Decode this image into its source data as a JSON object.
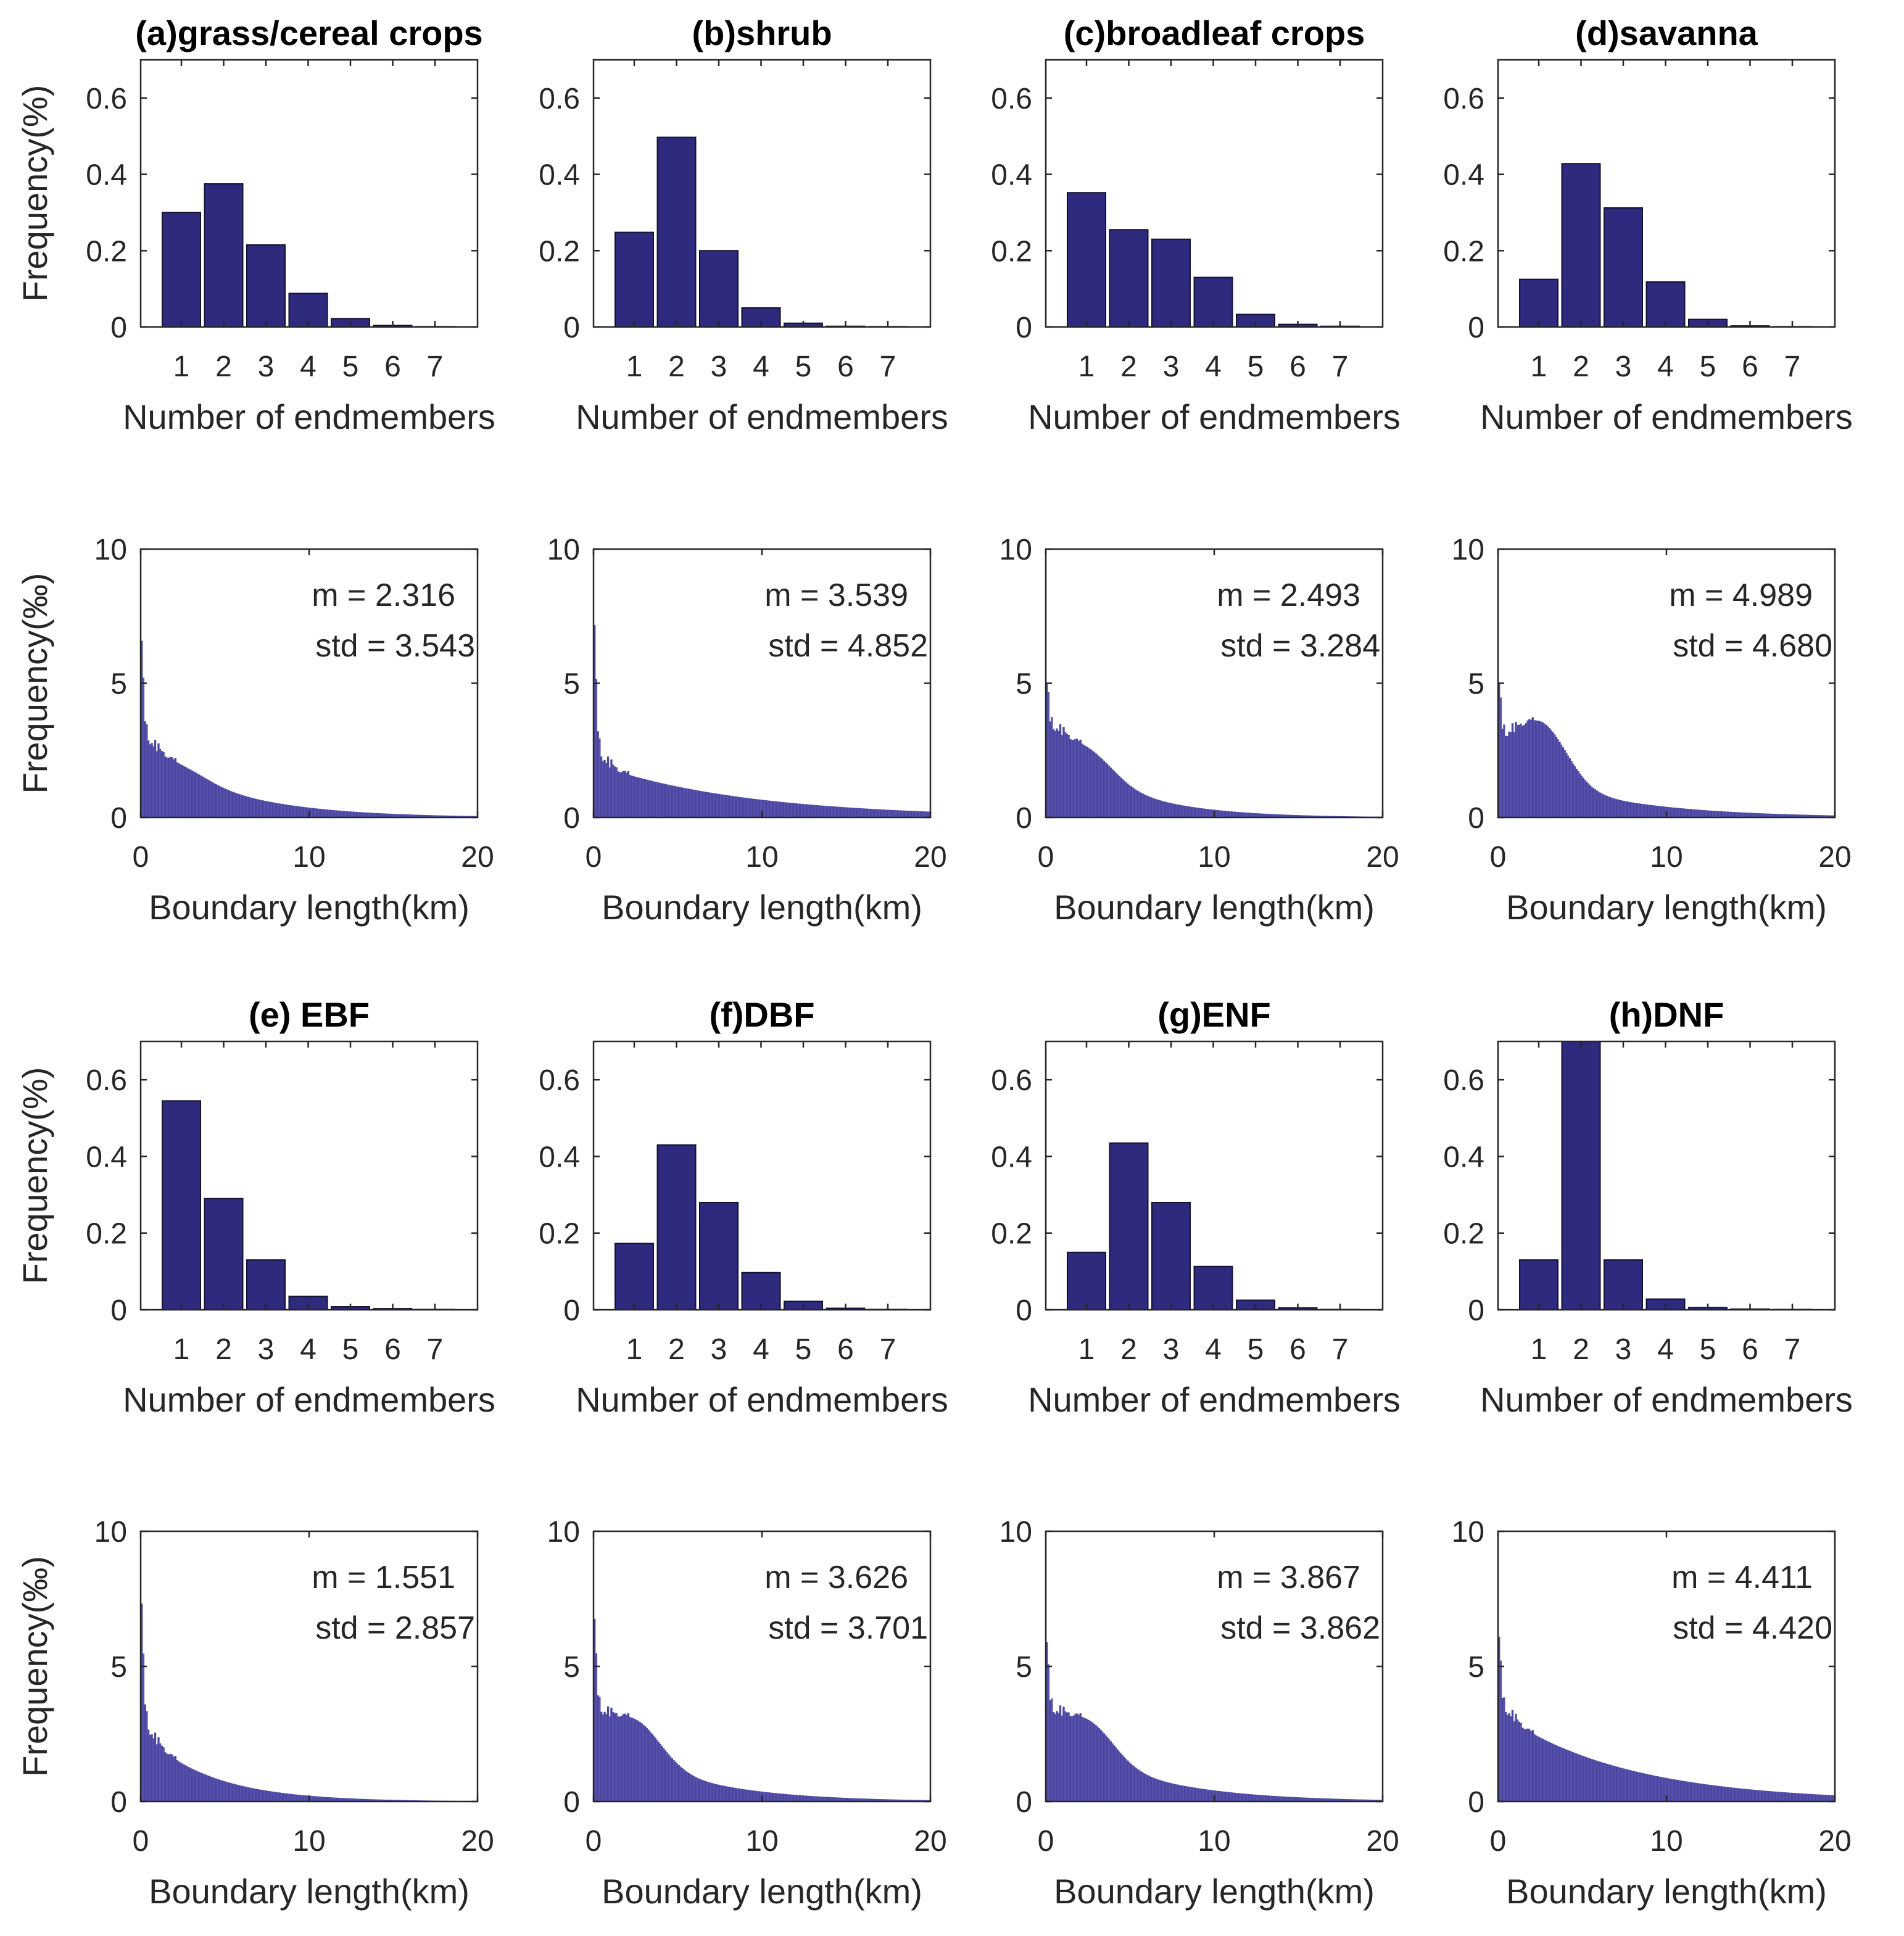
{
  "figure": {
    "bar_color": "#2e2a7e",
    "hist_color": "#4a46a0",
    "frame_color": "#262626",
    "endmember_ylabel": "Frequency(%)",
    "boundary_ylabel": "Frequency(‰)",
    "endmember_xlabel": "Number of endmembers",
    "boundary_xlabel": "Boundary length(km)"
  },
  "chart_data": [
    {
      "id": "a",
      "type": "bar",
      "title": "(a)grass/cereal crops",
      "xlabel": "Number of endmembers",
      "ylabel": "Frequency(%)",
      "categories": [
        "1",
        "2",
        "3",
        "4",
        "5",
        "6",
        "7"
      ],
      "values": [
        0.3,
        0.375,
        0.215,
        0.088,
        0.022,
        0.004,
        0.001
      ],
      "ylim": [
        0,
        0.7
      ],
      "yticks": [
        "0",
        "0.2",
        "0.4",
        "0.6"
      ]
    },
    {
      "id": "b",
      "type": "bar",
      "title": "(b)shrub",
      "xlabel": "Number of endmembers",
      "ylabel": "",
      "categories": [
        "1",
        "2",
        "3",
        "4",
        "5",
        "6",
        "7"
      ],
      "values": [
        0.248,
        0.497,
        0.2,
        0.05,
        0.01,
        0.002,
        0.001
      ],
      "ylim": [
        0,
        0.7
      ],
      "yticks": [
        "0",
        "0.2",
        "0.4",
        "0.6"
      ]
    },
    {
      "id": "c",
      "type": "bar",
      "title": "(c)broadleaf crops",
      "xlabel": "Number of endmembers",
      "ylabel": "",
      "categories": [
        "1",
        "2",
        "3",
        "4",
        "5",
        "6",
        "7"
      ],
      "values": [
        0.352,
        0.255,
        0.23,
        0.13,
        0.033,
        0.007,
        0.002
      ],
      "ylim": [
        0,
        0.7
      ],
      "yticks": [
        "0",
        "0.2",
        "0.4",
        "0.6"
      ]
    },
    {
      "id": "d",
      "type": "bar",
      "title": "(d)savanna",
      "xlabel": "Number of endmembers",
      "ylabel": "",
      "categories": [
        "1",
        "2",
        "3",
        "4",
        "5",
        "6",
        "7"
      ],
      "values": [
        0.125,
        0.428,
        0.312,
        0.118,
        0.02,
        0.003,
        0.001
      ],
      "ylim": [
        0,
        0.7
      ],
      "yticks": [
        "0",
        "0.2",
        "0.4",
        "0.6"
      ]
    },
    {
      "id": "a-len",
      "type": "histogram",
      "title": "",
      "xlabel": "Boundary length(km)",
      "ylabel": "Frequency(‰)",
      "xlim": [
        0,
        20
      ],
      "ylim": [
        0,
        10
      ],
      "xticks": [
        "0",
        "10",
        "20"
      ],
      "yticks": [
        "0",
        "5",
        "10"
      ],
      "dist": {
        "base": 2.7,
        "decay": 5.0,
        "hump": 0.3,
        "peak": 7.0
      },
      "stats": {
        "m": "m = 2.316",
        "std": "std = 3.543"
      }
    },
    {
      "id": "b-len",
      "type": "histogram",
      "title": "",
      "xlabel": "Boundary length(km)",
      "ylabel": "",
      "xlim": [
        0,
        20
      ],
      "ylim": [
        0,
        10
      ],
      "xticks": [
        "0",
        "10",
        "20"
      ],
      "yticks": [
        "0",
        "5",
        "10"
      ],
      "dist": {
        "base": 2.0,
        "decay": 9.0,
        "hump": 0.0,
        "peak": 8.2
      },
      "stats": {
        "m": "m = 3.539",
        "std": "std = 4.852"
      }
    },
    {
      "id": "c-len",
      "type": "histogram",
      "title": "",
      "xlabel": "Boundary length(km)",
      "ylabel": "",
      "xlim": [
        0,
        20
      ],
      "ylim": [
        0,
        10
      ],
      "xticks": [
        "0",
        "10",
        "20"
      ],
      "yticks": [
        "0",
        "5",
        "10"
      ],
      "dist": {
        "base": 3.1,
        "decay": 4.2,
        "hump": 0.9,
        "peak": 4.4
      },
      "stats": {
        "m": "m = 2.493",
        "std": "std = 3.284"
      }
    },
    {
      "id": "d-len",
      "type": "histogram",
      "title": "",
      "xlabel": "Boundary length(km)",
      "ylabel": "",
      "xlim": [
        0,
        20
      ],
      "ylim": [
        0,
        10
      ],
      "xticks": [
        "0",
        "10",
        "20"
      ],
      "yticks": [
        "0",
        "5",
        "10"
      ],
      "dist": {
        "base": 2.1,
        "decay": 6.0,
        "hump": 2.2,
        "peak": 4.3
      },
      "stats": {
        "m": "m = 4.989",
        "std": "std = 4.680"
      }
    },
    {
      "id": "e",
      "type": "bar",
      "title": "(e) EBF",
      "xlabel": "Number of endmembers",
      "ylabel": "Frequency(%)",
      "categories": [
        "1",
        "2",
        "3",
        "4",
        "5",
        "6",
        "7"
      ],
      "values": [
        0.545,
        0.29,
        0.13,
        0.035,
        0.008,
        0.003,
        0.001
      ],
      "ylim": [
        0,
        0.7
      ],
      "yticks": [
        "0",
        "0.2",
        "0.4",
        "0.6"
      ]
    },
    {
      "id": "f",
      "type": "bar",
      "title": "(f)DBF",
      "xlabel": "Number of endmembers",
      "ylabel": "",
      "categories": [
        "1",
        "2",
        "3",
        "4",
        "5",
        "6",
        "7"
      ],
      "values": [
        0.173,
        0.43,
        0.28,
        0.097,
        0.022,
        0.004,
        0.001
      ],
      "ylim": [
        0,
        0.7
      ],
      "yticks": [
        "0",
        "0.2",
        "0.4",
        "0.6"
      ]
    },
    {
      "id": "g",
      "type": "bar",
      "title": "(g)ENF",
      "xlabel": "Number of endmembers",
      "ylabel": "",
      "categories": [
        "1",
        "2",
        "3",
        "4",
        "5",
        "6",
        "7"
      ],
      "values": [
        0.15,
        0.435,
        0.28,
        0.113,
        0.025,
        0.005,
        0.001
      ],
      "ylim": [
        0,
        0.7
      ],
      "yticks": [
        "0",
        "0.2",
        "0.4",
        "0.6"
      ]
    },
    {
      "id": "h",
      "type": "bar",
      "title": "(h)DNF",
      "xlabel": "Number of endmembers",
      "ylabel": "",
      "categories": [
        "1",
        "2",
        "3",
        "4",
        "5",
        "6",
        "7"
      ],
      "values": [
        0.13,
        0.7,
        0.13,
        0.028,
        0.006,
        0.002,
        0.001
      ],
      "ylim": [
        0,
        0.7
      ],
      "yticks": [
        "0",
        "0.2",
        "0.4",
        "0.6"
      ]
    },
    {
      "id": "e-len",
      "type": "histogram",
      "title": "",
      "xlabel": "Boundary length(km)",
      "ylabel": "Frequency(‰)",
      "xlim": [
        0,
        20
      ],
      "ylim": [
        0,
        10
      ],
      "xticks": [
        "0",
        "10",
        "20"
      ],
      "yticks": [
        "0",
        "5",
        "10"
      ],
      "dist": {
        "base": 2.6,
        "decay": 4.0,
        "hump": 0.0,
        "peak": 8.2
      },
      "stats": {
        "m": "m = 1.551",
        "std": "std = 2.857"
      }
    },
    {
      "id": "f-len",
      "type": "histogram",
      "title": "",
      "xlabel": "Boundary length(km)",
      "ylabel": "",
      "xlim": [
        0,
        20
      ],
      "ylim": [
        0,
        10
      ],
      "xticks": [
        "0",
        "10",
        "20"
      ],
      "yticks": [
        "0",
        "5",
        "10"
      ],
      "dist": {
        "base": 2.7,
        "decay": 5.0,
        "hump": 1.4,
        "peak": 6.8
      },
      "stats": {
        "m": "m = 3.626",
        "std": "std = 3.701"
      }
    },
    {
      "id": "g-len",
      "type": "histogram",
      "title": "",
      "xlabel": "Boundary length(km)",
      "ylabel": "",
      "xlim": [
        0,
        20
      ],
      "ylim": [
        0,
        10
      ],
      "xticks": [
        "0",
        "10",
        "20"
      ],
      "yticks": [
        "0",
        "5",
        "10"
      ],
      "dist": {
        "base": 2.8,
        "decay": 5.2,
        "hump": 1.3,
        "peak": 5.6
      },
      "stats": {
        "m": "m = 3.867",
        "std": "std = 3.862"
      }
    },
    {
      "id": "h-len",
      "type": "histogram",
      "title": "",
      "xlabel": "Boundary length(km)",
      "ylabel": "",
      "xlim": [
        0,
        20
      ],
      "ylim": [
        0,
        10
      ],
      "xticks": [
        "0",
        "10",
        "20"
      ],
      "yticks": [
        "0",
        "5",
        "10"
      ],
      "dist": {
        "base": 3.3,
        "decay": 7.5,
        "hump": 0.0,
        "peak": 6.2
      },
      "stats": {
        "m": "m = 4.411",
        "std": "std = 4.420"
      }
    }
  ]
}
